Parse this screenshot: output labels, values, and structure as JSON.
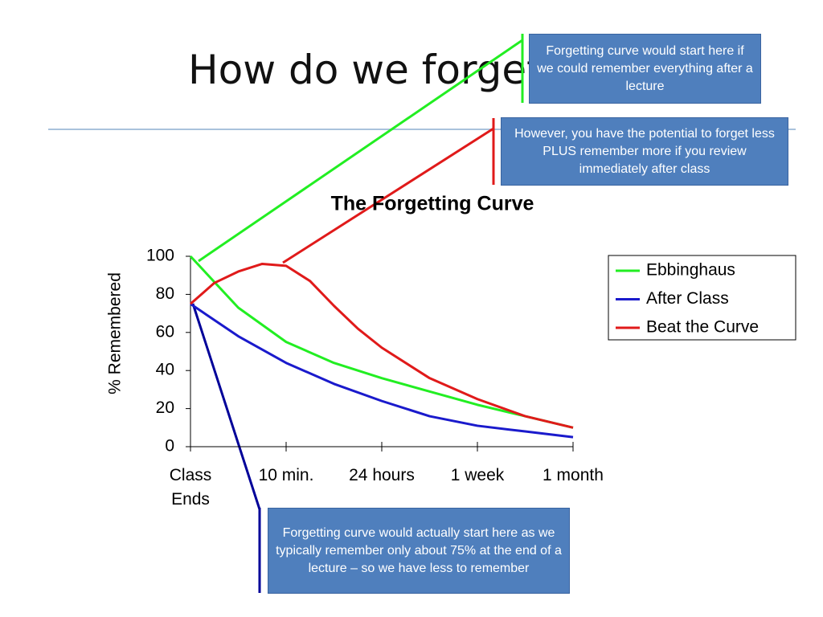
{
  "slide": {
    "title": "How do we forget?",
    "callouts": [
      "Forgetting curve would start here if we could remember everything after a lecture",
      "However, you have the potential to forget less PLUS remember more if you review immediately after class",
      "Forgetting curve would actually start here as we typically remember only about 75% at the end of a lecture – so we have less to remember"
    ]
  },
  "chart_data": {
    "type": "line",
    "title": "The Forgetting Curve",
    "y_label": "% Remembered",
    "xlim": [
      0,
      4
    ],
    "xticks": [
      {
        "value": 0,
        "label": "Class\nEnds"
      },
      {
        "value": 1,
        "label": "10 min."
      },
      {
        "value": 2,
        "label": "24 hours"
      },
      {
        "value": 3,
        "label": "1 week"
      },
      {
        "value": 4,
        "label": "1 month"
      }
    ],
    "ylim": [
      0,
      100
    ],
    "yticks": [
      0,
      20,
      40,
      60,
      80,
      100
    ],
    "legend": "right",
    "series": [
      {
        "name": "Ebbinghaus",
        "color": "#22ee22",
        "x": [
          0,
          0.5,
          1,
          1.5,
          2,
          2.5,
          3,
          3.5,
          4
        ],
        "values": [
          100,
          73,
          55,
          44,
          36,
          29,
          22,
          16,
          10
        ]
      },
      {
        "name": "After Class",
        "color": "#1a1acc",
        "x": [
          0,
          0.5,
          1,
          1.5,
          2,
          2.5,
          3,
          3.5,
          4
        ],
        "values": [
          75,
          58,
          44,
          33,
          24,
          16,
          11,
          8,
          5
        ]
      },
      {
        "name": "Beat the Curve",
        "color": "#e01a1a",
        "x": [
          0,
          0.25,
          0.5,
          0.75,
          1,
          1.25,
          1.5,
          1.75,
          2,
          2.5,
          3,
          3.5,
          4
        ],
        "values": [
          75,
          86,
          92,
          96,
          95,
          87,
          74,
          62,
          52,
          36,
          25,
          16,
          10
        ]
      }
    ]
  }
}
